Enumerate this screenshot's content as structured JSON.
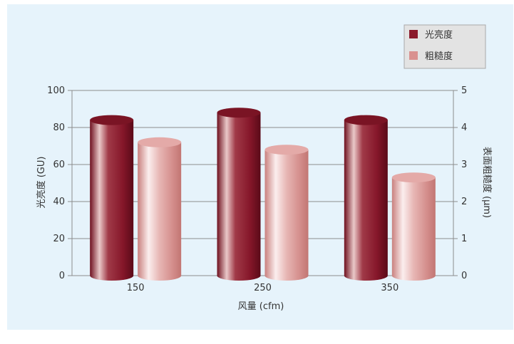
{
  "chart_data": {
    "type": "bar",
    "categories": [
      "150",
      "250",
      "350"
    ],
    "xlabel": "风量 (cfm)",
    "ylabel": "光亮度 (GU)",
    "y2label": "表面粗糙度 (μm)",
    "ylim": [
      0,
      100
    ],
    "y2lim": [
      0,
      5
    ],
    "yticks": [
      0,
      20,
      40,
      60,
      80,
      100
    ],
    "y2ticks": [
      0,
      1,
      2,
      3,
      4,
      5
    ],
    "grid": true,
    "legend_position": "top-right",
    "series": [
      {
        "name": "光亮度",
        "axis": "left",
        "values": [
          84,
          88,
          84
        ],
        "color": "#8b1a2b"
      },
      {
        "name": "粗糙度",
        "axis": "right",
        "values": [
          3.6,
          3.4,
          2.65
        ],
        "color": "#d9918f"
      }
    ]
  },
  "colors": {
    "panel_background": "#e6f3fb",
    "grid": "#8c8c8c",
    "legend_background": "#e3e3e3"
  }
}
